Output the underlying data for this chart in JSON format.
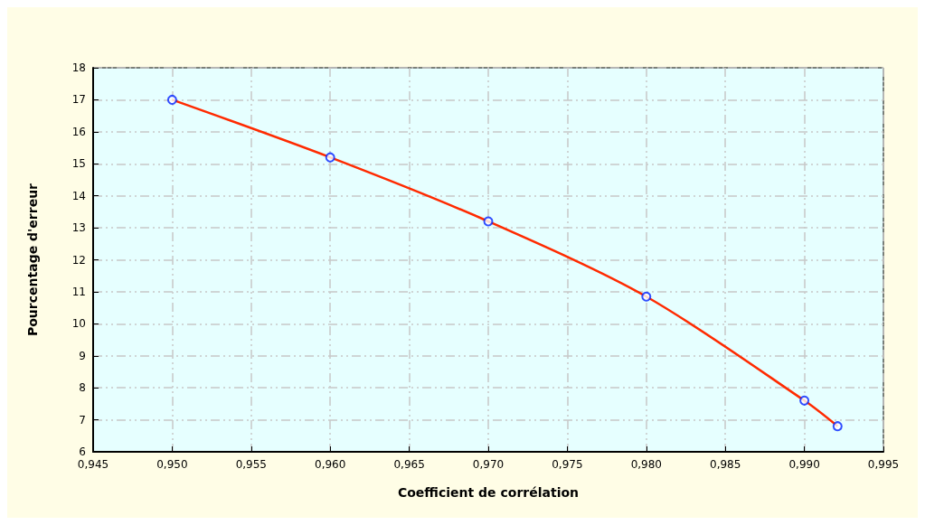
{
  "chart_data": {
    "type": "line",
    "xlabel": "Coefficient de corrélation",
    "ylabel": "Pourcentage d'erreur",
    "xlim": [
      0.945,
      0.995
    ],
    "xticks": [
      {
        "value": 0.945,
        "label": "0,945"
      },
      {
        "value": 0.95,
        "label": "0,950"
      },
      {
        "value": 0.955,
        "label": "0,955"
      },
      {
        "value": 0.96,
        "label": "0,960"
      },
      {
        "value": 0.965,
        "label": "0,965"
      },
      {
        "value": 0.97,
        "label": "0,970"
      },
      {
        "value": 0.975,
        "label": "0,975"
      },
      {
        "value": 0.98,
        "label": "0,980"
      },
      {
        "value": 0.985,
        "label": "0,985"
      },
      {
        "value": 0.99,
        "label": "0,990"
      },
      {
        "value": 0.995,
        "label": "0,995"
      }
    ],
    "ylim": [
      6,
      18
    ],
    "yticks": [
      6,
      7,
      8,
      9,
      10,
      11,
      12,
      13,
      14,
      15,
      16,
      17,
      18
    ],
    "grid": true,
    "series": [
      {
        "color": "#ff2a00",
        "marker": "none",
        "x": [
          0.95,
          0.96,
          0.97,
          0.98,
          0.99,
          0.9921
        ],
        "values": [
          17.0,
          15.2,
          13.2,
          10.85,
          7.6,
          6.8
        ]
      },
      {
        "type": "scatter",
        "color": "#0022ff",
        "marker": "circle",
        "x": [
          0.95,
          0.96,
          0.97,
          0.98,
          0.99,
          0.9921
        ],
        "values": [
          17.0,
          15.2,
          13.2,
          10.85,
          7.6,
          6.8
        ]
      }
    ]
  }
}
